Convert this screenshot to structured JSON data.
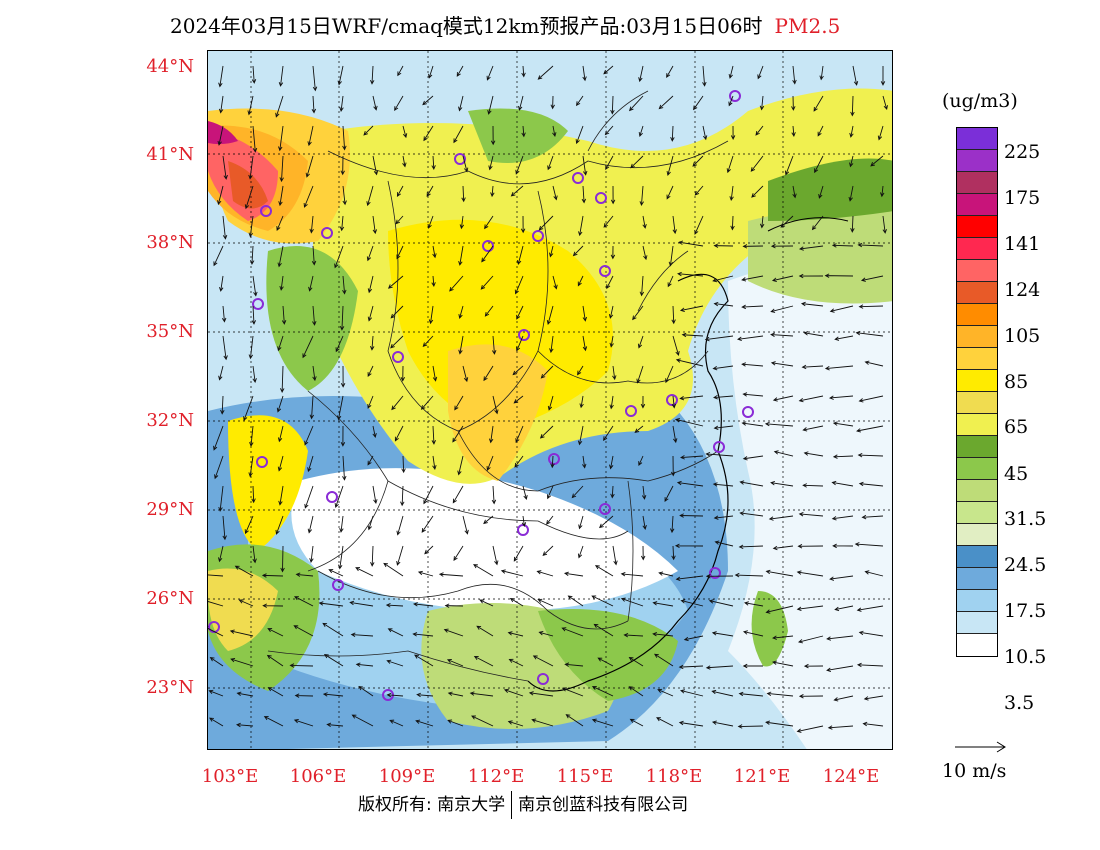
{
  "header": {
    "title": "2024年03月15日WRF/cmaq模式12km预报产品:03月15日06时",
    "pollutant": "PM2.5"
  },
  "axes": {
    "lat_labels": [
      "44°N",
      "41°N",
      "38°N",
      "35°N",
      "32°N",
      "29°N",
      "26°N",
      "23°N"
    ],
    "lon_labels": [
      "103°E",
      "106°E",
      "109°E",
      "112°E",
      "115°E",
      "118°E",
      "121°E",
      "124°E"
    ]
  },
  "legend": {
    "unit": "(ug/m3)",
    "levels": [
      "225",
      "175",
      "141",
      "124",
      "105",
      "85",
      "65",
      "45",
      "31.5",
      "24.5",
      "17.5",
      "10.5",
      "3.5"
    ],
    "colors": [
      "#7b2fd8",
      "#9b30c8",
      "#b03060",
      "#c8147a",
      "#ff0000",
      "#ff2850",
      "#ff6464",
      "#e85a28",
      "#ff8c00",
      "#ffb428",
      "#ffd23c",
      "#ffeb00",
      "#f0dc50",
      "#f0f050",
      "#6ba82e",
      "#8cc84b",
      "#bedc78",
      "#c8e68c",
      "#e1eec3",
      "#4a90c8",
      "#6eaadc",
      "#a0d2f0",
      "#c8e6f5",
      "#ffffff"
    ],
    "wind_ref": "10 m/s"
  },
  "footer": {
    "copyright_a": "版权所有: 南京大学",
    "copyright_b": "南京创蓝科技有限公司"
  }
}
